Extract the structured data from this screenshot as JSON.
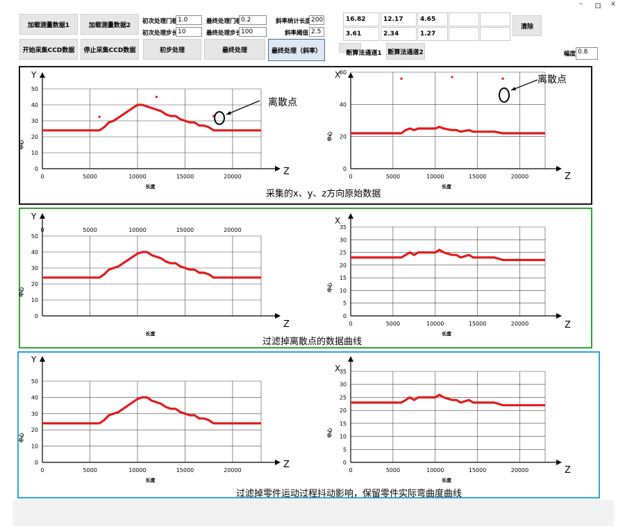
{
  "window_controls": {
    "minimize": "–",
    "maximize": "ロ",
    "close": "x"
  },
  "toolbar": {
    "load1": "加载测量数据1",
    "load2": "加载测量数据2",
    "start_ccd": "开始采集CCD数据",
    "stop_ccd": "停止采集CCD数据",
    "initial_process": "初步处理",
    "final_process": "最终处理",
    "final_process_slope": "最终处理（斜率）",
    "disconnect1": "断算法通道1",
    "disconnect2": "断算法通道2",
    "clear": "清除",
    "initial_threshold_label": "初次处理门槛",
    "initial_threshold": "1.0",
    "initial_step_label": "初次处理步长",
    "initial_step": "10",
    "final_threshold_label": "最终处理门槛",
    "final_threshold": "0.2",
    "final_step_label": "最终处理步长",
    "final_step": "100",
    "slope_len_label": "斜率统计长度",
    "slope_len": "200",
    "slope_thresh_label": "斜率阈值",
    "slope_thresh": "2.5",
    "amplitude_label": "幅度",
    "amplitude": "0.8",
    "results": [
      [
        "16.82",
        "12.17",
        "4.65",
        "",
        ""
      ],
      [
        "3.61",
        "2.34",
        "1.27",
        "",
        ""
      ]
    ]
  },
  "colors": {
    "curve": "#e01b1b",
    "panel1_border": "#111111",
    "panel2_border": "#2fa32f",
    "panel3_border": "#2aa3e0"
  },
  "captions": {
    "panel1": "采集的x、y、z方向原始数据",
    "panel2": "过滤掉离散点的数据曲线",
    "panel3": "过滤掉零件运动过程抖动影响，保留零件实际弯曲度曲线",
    "outlier": "离散点"
  },
  "axes": {
    "y_label": "Y",
    "x_label": "X",
    "z_label": "Z",
    "length_label": "长度",
    "value_label": "中心"
  },
  "chart_data": [
    {
      "type": "line",
      "name": "raw-y",
      "xlim": [
        0,
        23000
      ],
      "ylim": [
        0,
        50
      ],
      "xticks": [
        0,
        5000,
        10000,
        15000,
        20000
      ],
      "yticks": [
        0,
        10,
        20,
        30,
        40,
        50
      ],
      "x": [
        0,
        6000,
        6500,
        7000,
        7500,
        8000,
        8500,
        9000,
        9500,
        10000,
        10500,
        11000,
        11500,
        12000,
        12500,
        13000,
        13500,
        14000,
        14500,
        15000,
        15500,
        16000,
        16500,
        17000,
        17500,
        18000,
        18500,
        19000,
        23000
      ],
      "values": [
        24,
        24,
        26,
        29,
        30,
        32,
        34,
        36,
        38,
        40,
        40,
        39,
        38,
        37,
        36,
        34,
        33,
        33,
        31,
        30,
        29,
        29,
        27,
        27,
        26,
        24,
        24,
        24,
        24
      ],
      "outliers": [
        [
          6000,
          32.5
        ],
        [
          12000,
          45
        ],
        [
          18000,
          33
        ]
      ]
    },
    {
      "type": "line",
      "name": "raw-x",
      "xlim": [
        0,
        23000
      ],
      "ylim": [
        0,
        65
      ],
      "xticks": [
        0,
        5000,
        10000,
        15000,
        20000
      ],
      "yticks": [
        0,
        20,
        40,
        60
      ],
      "x": [
        0,
        5000,
        6000,
        6500,
        7000,
        7500,
        8000,
        9000,
        10000,
        10500,
        11000,
        12000,
        12500,
        13000,
        14000,
        14500,
        15000,
        16000,
        17000,
        18000,
        23000
      ],
      "values": [
        22,
        22,
        22,
        24,
        25,
        24,
        25,
        25,
        25,
        26,
        25,
        24,
        24,
        23,
        24,
        23,
        23,
        23,
        23,
        22,
        22
      ],
      "outliers": [
        [
          6000,
          56
        ],
        [
          12000,
          57
        ],
        [
          18000,
          56
        ]
      ]
    },
    {
      "type": "line",
      "name": "filtered-y",
      "xlim": [
        0,
        23000
      ],
      "ylim": [
        0,
        50
      ],
      "xticks": [
        0,
        5000,
        10000,
        15000,
        20000
      ],
      "yticks": [
        0,
        10,
        20,
        30,
        40,
        50
      ],
      "x": [
        0,
        6000,
        6500,
        7000,
        7500,
        8000,
        8500,
        9000,
        9500,
        10000,
        10500,
        11000,
        11500,
        12000,
        12500,
        13000,
        13500,
        14000,
        14500,
        15000,
        15500,
        16000,
        16500,
        17000,
        17500,
        18000,
        23000
      ],
      "values": [
        24,
        24,
        26,
        29,
        30,
        31,
        33,
        35,
        37,
        39,
        40,
        40,
        38,
        37,
        36,
        34,
        33,
        33,
        31,
        30,
        29,
        29,
        27,
        27,
        26,
        24,
        24
      ]
    },
    {
      "type": "line",
      "name": "filtered-x",
      "xlim": [
        0,
        23000
      ],
      "ylim": [
        0,
        37
      ],
      "xticks": [
        0,
        5000,
        10000,
        15000,
        20000
      ],
      "yticks": [
        0,
        5,
        10,
        15,
        20,
        25,
        30,
        35
      ],
      "x": [
        0,
        5000,
        6000,
        6500,
        7000,
        7500,
        8000,
        9000,
        10000,
        10500,
        11000,
        12000,
        12500,
        13000,
        14000,
        14500,
        15000,
        16000,
        17000,
        18000,
        19000,
        23000
      ],
      "values": [
        23,
        23,
        23,
        24,
        25,
        24,
        25,
        25,
        25,
        26,
        25,
        24,
        24,
        23,
        24,
        23,
        23,
        23,
        23,
        22,
        22,
        22
      ]
    },
    {
      "type": "line",
      "name": "final-y",
      "xlim": [
        0,
        23000
      ],
      "ylim": [
        0,
        50
      ],
      "xticks": [
        0,
        5000,
        10000,
        15000,
        20000
      ],
      "yticks": [
        0,
        10,
        20,
        30,
        40,
        50
      ],
      "x": [
        0,
        6000,
        6500,
        7000,
        7500,
        8000,
        8500,
        9000,
        9500,
        10000,
        10500,
        11000,
        11500,
        12000,
        12500,
        13000,
        13500,
        14000,
        14500,
        15000,
        15500,
        16000,
        16500,
        17000,
        17500,
        18000,
        23000
      ],
      "values": [
        24,
        24,
        26,
        29,
        30,
        31,
        33,
        35,
        37,
        39,
        40,
        40,
        38,
        37,
        36,
        34,
        33,
        33,
        31,
        30,
        29,
        29,
        27,
        27,
        26,
        24,
        24
      ]
    },
    {
      "type": "line",
      "name": "final-x",
      "xlim": [
        0,
        23000
      ],
      "ylim": [
        0,
        37
      ],
      "xticks": [
        0,
        5000,
        10000,
        15000,
        20000
      ],
      "yticks": [
        0,
        5,
        10,
        15,
        20,
        25,
        30,
        35
      ],
      "x": [
        0,
        5000,
        6000,
        6500,
        7000,
        7500,
        8000,
        9000,
        10000,
        10500,
        11000,
        12000,
        12500,
        13000,
        14000,
        14500,
        15000,
        16000,
        17000,
        18000,
        19000,
        23000
      ],
      "values": [
        23,
        23,
        23,
        24,
        25,
        24,
        25,
        25,
        25,
        26,
        25,
        24,
        24,
        23,
        24,
        23,
        23,
        23,
        23,
        22,
        22,
        22
      ]
    }
  ]
}
